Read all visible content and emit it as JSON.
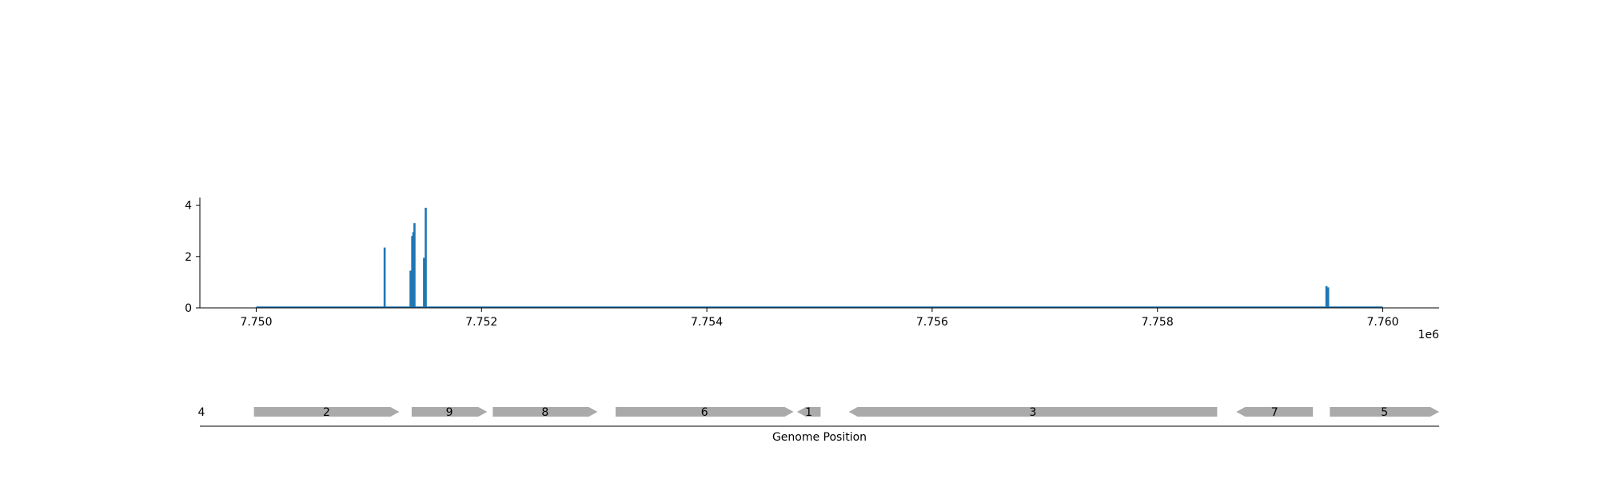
{
  "chart_data": [
    {
      "type": "bar",
      "title": "",
      "xlabel": "",
      "ylabel": "",
      "x_offset_label": "1e6",
      "xlim": [
        7749500,
        7760500
      ],
      "ylim": [
        0,
        4.3
      ],
      "x_ticks": [
        {
          "value": 7750000,
          "label": "7.750"
        },
        {
          "value": 7752000,
          "label": "7.752"
        },
        {
          "value": 7754000,
          "label": "7.754"
        },
        {
          "value": 7756000,
          "label": "7.756"
        },
        {
          "value": 7758000,
          "label": "7.758"
        },
        {
          "value": 7760000,
          "label": "7.760"
        }
      ],
      "y_ticks": [
        {
          "value": 0,
          "label": "0"
        },
        {
          "value": 2,
          "label": "2"
        },
        {
          "value": 4,
          "label": "4"
        }
      ],
      "baseline": {
        "x_start": 7750000,
        "x_end": 7760000,
        "y": 0
      },
      "series": [
        {
          "color": "#1f77b4",
          "x": [
            7751140,
            7751370,
            7751385,
            7751395,
            7751405,
            7751490,
            7751505,
            7759500,
            7759515
          ],
          "values": [
            2.35,
            1.45,
            2.8,
            2.95,
            3.3,
            1.95,
            3.9,
            0.85,
            0.8
          ]
        }
      ],
      "grid": false,
      "legend": "none"
    },
    {
      "type": "gene-track",
      "xlabel": "Genome Position",
      "track_label": "4",
      "gene_color": "#aaaaaa",
      "genes": [
        {
          "label": "2",
          "start": 7749980,
          "end": 7751270,
          "strand": "+"
        },
        {
          "label": "9",
          "start": 7751380,
          "end": 7752050,
          "strand": "+"
        },
        {
          "label": "8",
          "start": 7752100,
          "end": 7753030,
          "strand": "+"
        },
        {
          "label": "6",
          "start": 7753190,
          "end": 7754770,
          "strand": "+"
        },
        {
          "label": "1",
          "start": 7754800,
          "end": 7755010,
          "strand": "-"
        },
        {
          "label": "3",
          "start": 7755260,
          "end": 7758530,
          "strand": "-"
        },
        {
          "label": "7",
          "start": 7758700,
          "end": 7759380,
          "strand": "-"
        },
        {
          "label": "5",
          "start": 7759530,
          "end": 7760500,
          "strand": "+"
        }
      ]
    }
  ]
}
